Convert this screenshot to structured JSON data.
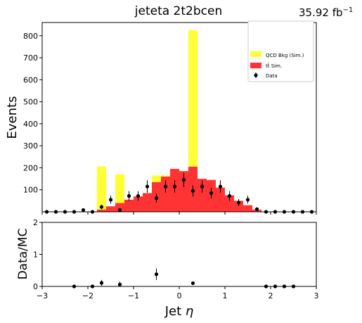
{
  "header": {
    "title": "jeteta  2t2bcen",
    "lumi_value": "35.92 fb",
    "lumi_exp": "−1"
  },
  "colors": {
    "qcd": "#ffff33",
    "ttbar": "#ff3333",
    "data": "#000000"
  },
  "chart_data": [
    {
      "type": "bar",
      "panel": "main",
      "xlabel": "Jet η",
      "ylabel": "Events",
      "xlim": [
        -3,
        3
      ],
      "ylim": [
        0,
        860
      ],
      "bin_width": 0.2,
      "xticks": [
        -3,
        -2,
        -1,
        0,
        1,
        2,
        3
      ],
      "xtick_labels": [
        "−3",
        "−2",
        "−1",
        "0",
        "1",
        "2",
        "3"
      ],
      "yticks": [
        100,
        200,
        300,
        400,
        500,
        600,
        700,
        800
      ],
      "legend_position": "top-right",
      "legend": [
        {
          "label": "QCD Bkg (Sim.)",
          "kind": "fill",
          "series": "qcd"
        },
        {
          "label": "tt̄ Sim.",
          "kind": "fill",
          "series": "ttbar"
        },
        {
          "label": "Data",
          "kind": "errorbar",
          "series": "data"
        }
      ],
      "stacked_series": [
        {
          "key": "ttbar",
          "name": "tt̄ Sim.",
          "bins": [
            -1.8,
            -1.6,
            -1.4,
            -1.2,
            -1.0,
            -0.8,
            -0.6,
            -0.4,
            -0.2,
            0.0,
            0.2,
            0.4,
            0.6,
            0.8,
            1.0,
            1.2,
            1.4,
            1.6
          ],
          "values": [
            10,
            25,
            40,
            55,
            70,
            85,
            135,
            160,
            195,
            185,
            205,
            150,
            145,
            110,
            75,
            50,
            30,
            10
          ]
        },
        {
          "key": "qcd",
          "name": "QCD Bkg (Sim.)",
          "bins": [
            -1.8,
            -1.4,
            -0.6,
            -0.4,
            0.2
          ],
          "values": [
            195,
            130,
            30,
            5,
            620
          ]
        }
      ],
      "data_points": {
        "name": "Data",
        "x": [
          -2.9,
          -2.7,
          -2.5,
          -2.3,
          -2.1,
          -1.9,
          -1.7,
          -1.5,
          -1.3,
          -1.1,
          -0.9,
          -0.7,
          -0.5,
          -0.3,
          -0.1,
          0.1,
          0.3,
          0.5,
          0.7,
          0.9,
          1.1,
          1.3,
          1.5,
          1.7,
          1.9,
          2.1,
          2.3,
          2.5,
          2.7,
          2.9
        ],
        "y": [
          0,
          0,
          0,
          0,
          8,
          0,
          22,
          55,
          8,
          72,
          72,
          115,
          62,
          115,
          115,
          145,
          95,
          115,
          85,
          115,
          72,
          42,
          55,
          12,
          0,
          0,
          0,
          0,
          0,
          0
        ],
        "err": [
          0,
          0,
          0,
          0,
          4,
          0,
          10,
          18,
          6,
          22,
          22,
          28,
          20,
          28,
          28,
          32,
          26,
          28,
          24,
          28,
          22,
          16,
          18,
          8,
          0,
          0,
          0,
          0,
          0,
          0
        ]
      }
    },
    {
      "type": "scatter",
      "panel": "ratio",
      "xlabel": "Jet η",
      "ylabel": "Data/MC",
      "xlim": [
        -3,
        3
      ],
      "ylim": [
        0,
        2
      ],
      "yticks": [
        0,
        1,
        2
      ],
      "x": [
        -2.3,
        -1.9,
        -1.7,
        -1.3,
        -0.5,
        0.3,
        1.9,
        2.1,
        2.3,
        2.5
      ],
      "y": [
        0,
        0,
        0.11,
        0.06,
        0.38,
        0.1,
        0,
        0,
        0,
        0
      ],
      "err": [
        0,
        0,
        0.09,
        0.08,
        0.18,
        0.02,
        0,
        0,
        0,
        0
      ]
    }
  ]
}
